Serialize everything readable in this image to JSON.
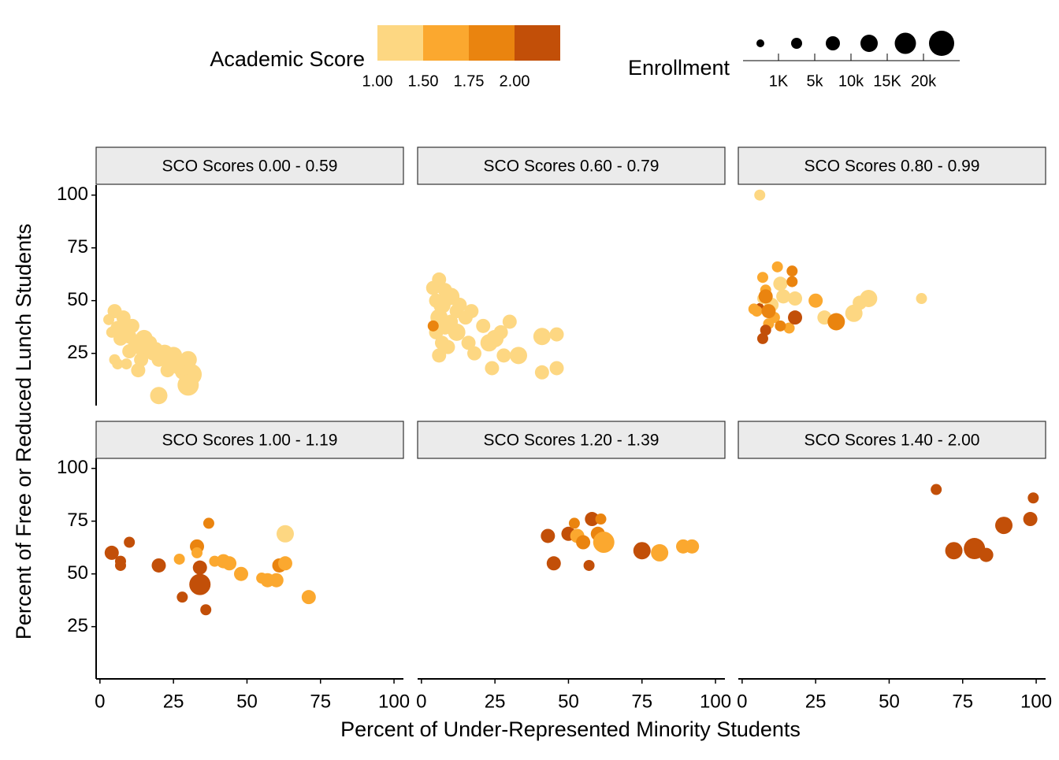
{
  "chart_data": {
    "type": "scatter",
    "x_label": "Percent of Under-Represented Minority Students",
    "y_label": "Percent of Free or Reduced Lunch Students",
    "xlim": [
      -1.3,
      103.2
    ],
    "xticks": [
      0,
      25,
      50,
      75,
      100
    ],
    "ylim": [
      0.25,
      104.75
    ],
    "yticks": [
      25,
      50,
      75,
      100
    ],
    "color_legend": {
      "title": "Academic Score",
      "breaks": [
        {
          "value": 1,
          "label": "1.00"
        },
        {
          "value": 1.5,
          "label": "1.50"
        },
        {
          "value": 1.75,
          "label": "1.75"
        },
        {
          "value": 2,
          "label": "2.00"
        }
      ],
      "colors": [
        "#fdd782",
        "#fba82f",
        "#ea840f",
        "#c24f08"
      ]
    },
    "size_legend": {
      "title": "Enrollment",
      "breaks": [
        {
          "value": 1000,
          "label": "1K"
        },
        {
          "value": 5000,
          "label": "5k"
        },
        {
          "value": 10000,
          "label": "10k"
        },
        {
          "value": 15000,
          "label": "15K"
        },
        {
          "value": 20000,
          "label": "20k"
        }
      ]
    },
    "panels": [
      {
        "title": "SCO Scores 0.00 - 0.59",
        "x": [
          3,
          5,
          8,
          6,
          4,
          7,
          9,
          10,
          12,
          13,
          15,
          16,
          17,
          18,
          20,
          22,
          24,
          25,
          27,
          28,
          30,
          31,
          30,
          20,
          13,
          5,
          6,
          10,
          11,
          14,
          19,
          23,
          9
        ],
        "y": [
          41,
          45,
          42,
          37,
          35,
          32,
          38,
          33,
          30,
          28,
          32,
          27,
          30,
          25,
          22,
          25,
          20,
          24,
          18,
          16,
          22,
          15,
          10,
          5,
          17,
          22,
          20,
          26,
          38,
          22,
          27,
          17,
          20
        ],
        "enrollment": [
          3000,
          6000,
          7000,
          5000,
          4000,
          8000,
          6000,
          9000,
          7000,
          6000,
          11000,
          8000,
          7000,
          6000,
          9000,
          12000,
          11000,
          13000,
          8000,
          6000,
          14000,
          16000,
          17000,
          12000,
          5000,
          2000,
          3000,
          8000,
          5000,
          6000,
          7000,
          9000,
          4000
        ],
        "score": [
          1,
          1,
          1,
          1,
          1,
          1,
          1,
          1,
          1,
          1,
          1,
          1,
          1,
          1,
          1,
          1,
          1,
          1,
          1,
          1,
          1,
          1,
          1,
          1,
          1,
          1,
          1,
          1,
          1,
          1,
          1,
          1,
          1
        ]
      },
      {
        "title": "SCO Scores 0.60 - 0.79",
        "x": [
          4,
          6,
          8,
          5,
          7,
          10,
          12,
          6,
          8,
          10,
          13,
          15,
          17,
          5,
          7,
          9,
          6,
          12,
          16,
          18,
          21,
          23,
          25,
          27,
          30,
          28,
          33,
          24,
          41,
          46,
          46,
          41,
          4
        ],
        "y": [
          56,
          60,
          55,
          50,
          48,
          52,
          45,
          42,
          38,
          40,
          48,
          42,
          45,
          35,
          30,
          28,
          24,
          35,
          30,
          25,
          38,
          30,
          32,
          35,
          40,
          24,
          24,
          18,
          33,
          34,
          18,
          16,
          38
        ],
        "enrollment": [
          6000,
          7000,
          8000,
          9000,
          10000,
          11000,
          9000,
          12000,
          10000,
          8000,
          9000,
          7000,
          6000,
          8000,
          7000,
          6000,
          9000,
          11000,
          7000,
          5000,
          9000,
          12000,
          14000,
          8000,
          9000,
          7000,
          10000,
          8000,
          12000,
          5000,
          6000,
          5000,
          3000
        ],
        "score": [
          1,
          1,
          1,
          1,
          1,
          1,
          1,
          1,
          1,
          1,
          1,
          1,
          1,
          1,
          1,
          1,
          1,
          1,
          1,
          1,
          1,
          1,
          1,
          1,
          1,
          1,
          1,
          1,
          1,
          1,
          1,
          1,
          1.75
        ]
      },
      {
        "title": "SCO Scores 0.80 - 0.99",
        "x": [
          6,
          7,
          6,
          5,
          7,
          8,
          10,
          12,
          13,
          14,
          11,
          9,
          7,
          8,
          17,
          17,
          18,
          16,
          18,
          13,
          25,
          28,
          32,
          38,
          40,
          43,
          61,
          4,
          9,
          8
        ],
        "y": [
          100,
          61,
          47,
          45,
          51,
          55,
          48,
          66,
          58,
          52,
          42,
          39,
          32,
          36,
          64,
          59,
          51,
          37,
          42,
          38,
          50,
          42,
          40,
          44,
          49,
          51,
          51,
          46,
          45,
          52
        ],
        "enrollment": [
          1500,
          2000,
          800,
          1500,
          3000,
          4000,
          6000,
          2000,
          5000,
          7000,
          4000,
          3000,
          3500,
          2000,
          4000,
          3000,
          7000,
          4500,
          5000,
          4000,
          9000,
          6000,
          12000,
          11000,
          8000,
          10000,
          4000,
          1500,
          8000,
          5000
        ],
        "score": [
          1,
          1.5,
          2,
          1.5,
          1,
          1.5,
          1,
          1.5,
          1,
          1,
          1.5,
          1.5,
          2,
          2,
          1.75,
          1.75,
          1,
          1.5,
          2,
          1.75,
          1.5,
          1,
          1.75,
          1,
          1,
          1,
          1,
          1.5,
          1.75,
          1.75
        ]
      },
      {
        "title": "SCO Scores 1.00 - 1.19",
        "x": [
          4,
          7,
          7,
          10,
          20,
          27,
          28,
          33,
          33,
          34,
          34,
          37,
          36,
          39,
          42,
          44,
          48,
          55,
          57,
          60,
          61,
          63,
          63,
          71
        ],
        "y": [
          60,
          56,
          54,
          65,
          54,
          57,
          39,
          63,
          60,
          45,
          53,
          74,
          33,
          56,
          56,
          55,
          50,
          48,
          47,
          47,
          54,
          55,
          69,
          39
        ],
        "enrollment": [
          5000,
          4000,
          4000,
          1500,
          9000,
          4000,
          4000,
          6000,
          3000,
          17000,
          8000,
          4000,
          4000,
          1500,
          7000,
          8000,
          7000,
          4000,
          6000,
          7000,
          9000,
          6000,
          12000,
          9000
        ],
        "score": [
          2,
          2,
          2,
          2,
          2,
          1.5,
          2,
          1.75,
          1.5,
          2,
          2,
          1.75,
          2,
          1.5,
          1.5,
          1.5,
          1.5,
          1.5,
          1.5,
          1.5,
          1.75,
          1.5,
          1,
          1.5
        ]
      },
      {
        "title": "SCO Scores 1.20 - 1.39",
        "x": [
          43,
          45,
          50,
          52,
          53,
          55,
          57,
          58,
          60,
          61,
          62,
          75,
          81,
          89,
          92
        ],
        "y": [
          68,
          55,
          69,
          74,
          68,
          65,
          54,
          76,
          69,
          76,
          65,
          61,
          60,
          63,
          63
        ],
        "enrollment": [
          7000,
          7000,
          8000,
          1500,
          8000,
          7000,
          4000,
          7000,
          8000,
          4000,
          19000,
          12000,
          14000,
          7000,
          9000
        ],
        "score": [
          2,
          2,
          2,
          1.75,
          1.5,
          1.75,
          2,
          2,
          1.75,
          1.75,
          1.5,
          2,
          1.5,
          1.5,
          1.5
        ]
      },
      {
        "title": "SCO Scores 1.40 - 2.00",
        "x": [
          66,
          72,
          79,
          83,
          89,
          98,
          99
        ],
        "y": [
          90,
          61,
          62,
          59,
          73,
          76,
          86
        ],
        "enrollment": [
          4000,
          11000,
          16000,
          9000,
          11000,
          5000,
          4000
        ],
        "score": [
          2,
          2,
          2,
          2,
          2,
          2,
          2
        ]
      }
    ]
  }
}
